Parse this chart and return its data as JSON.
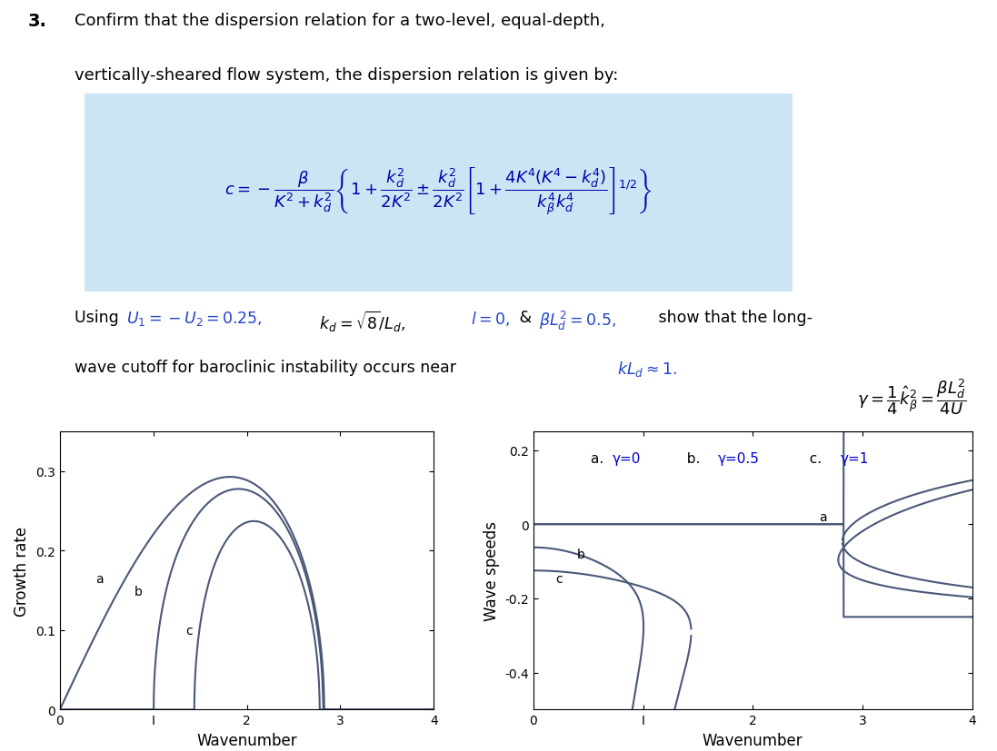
{
  "bg_color": "#ffffff",
  "line_color": "#4a5878",
  "plot_bg": "#ffffff",
  "blue_color": "#0000cc",
  "U": 0.25,
  "kd_sq": 8.0,
  "gamma_values": [
    0,
    0.5,
    1.0
  ],
  "left_xlim": [
    0,
    4
  ],
  "left_ylim": [
    0,
    0.35
  ],
  "left_yticks": [
    0,
    0.1,
    0.2,
    0.3
  ],
  "left_xticks": [
    0,
    1,
    2,
    3,
    4
  ],
  "left_ylabel": "Growth rate",
  "left_xlabel": "Wavenumber",
  "right_xlim": [
    0,
    4
  ],
  "right_ylim": [
    -0.5,
    0.25
  ],
  "right_yticks": [
    -0.4,
    -0.2,
    0,
    0.2
  ],
  "right_xticks": [
    0,
    1,
    2,
    3,
    4
  ],
  "right_ylabel": "Wave speeds",
  "right_xlabel": "Wavenumber",
  "legend_text_a": "a. ",
  "legend_val_a": "γ=0",
  "legend_text_b": "  b. ",
  "legend_val_b": "γ=0.5",
  "legend_text_c": "  c. ",
  "legend_val_c": "γ=1"
}
